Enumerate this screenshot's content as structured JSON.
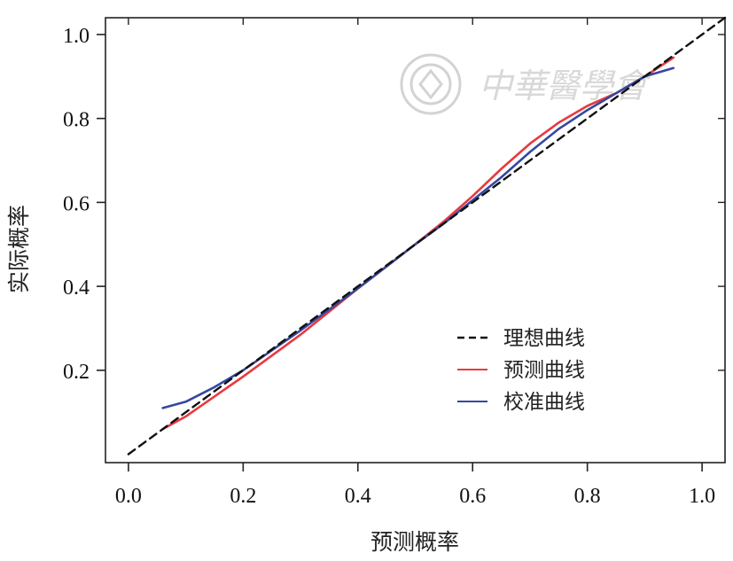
{
  "watermark": {
    "text": "中華醫學會",
    "color": "#cfcfcf"
  },
  "chart_data": {
    "type": "line",
    "title": "",
    "xlabel": "预测概率",
    "ylabel": "实际概率",
    "xlim": [
      -0.04,
      1.04
    ],
    "ylim": [
      -0.02,
      1.04
    ],
    "xticks": [
      0.0,
      0.2,
      0.4,
      0.6,
      0.8,
      1.0
    ],
    "xtick_labels": [
      "0.0",
      "0.2",
      "0.4",
      "0.6",
      "0.8",
      "1.0"
    ],
    "yticks": [
      0.2,
      0.4,
      0.6,
      0.8,
      1.0
    ],
    "ytick_labels": [
      "0.2",
      "0.4",
      "0.6",
      "0.8",
      "1.0"
    ],
    "grid": false,
    "legend_position": "bottom-right",
    "series": [
      {
        "name": "理想曲线",
        "color": "#111111",
        "dash": "dashed",
        "x": [
          0.0,
          1.04
        ],
        "y": [
          0.0,
          1.04
        ]
      },
      {
        "name": "预测曲线",
        "color": "#e8393f",
        "dash": "solid",
        "x": [
          0.06,
          0.1,
          0.2,
          0.3,
          0.4,
          0.5,
          0.55,
          0.6,
          0.65,
          0.7,
          0.75,
          0.8,
          0.85,
          0.9,
          0.95
        ],
        "y": [
          0.06,
          0.09,
          0.185,
          0.285,
          0.395,
          0.5,
          0.555,
          0.615,
          0.68,
          0.74,
          0.79,
          0.83,
          0.86,
          0.9,
          0.945
        ]
      },
      {
        "name": "校准曲线",
        "color": "#3548a0",
        "dash": "solid",
        "x": [
          0.06,
          0.1,
          0.15,
          0.2,
          0.3,
          0.4,
          0.5,
          0.55,
          0.6,
          0.65,
          0.7,
          0.75,
          0.8,
          0.85,
          0.9,
          0.95
        ],
        "y": [
          0.11,
          0.125,
          0.16,
          0.2,
          0.295,
          0.395,
          0.5,
          0.55,
          0.605,
          0.66,
          0.72,
          0.775,
          0.82,
          0.86,
          0.9,
          0.92
        ]
      }
    ]
  }
}
